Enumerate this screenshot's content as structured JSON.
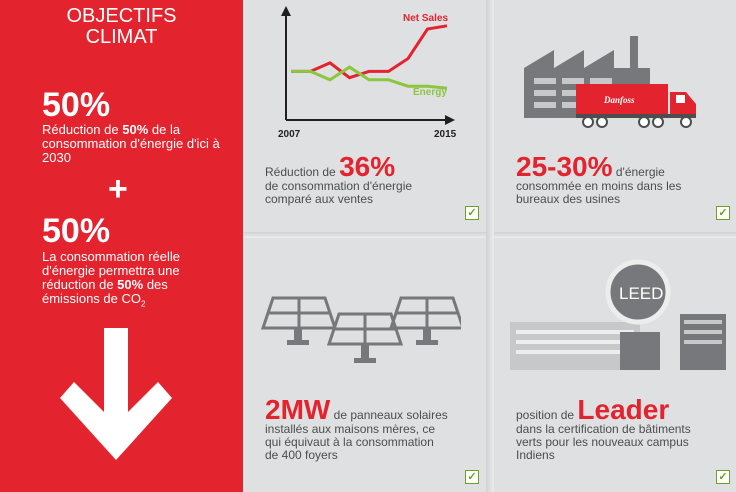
{
  "left": {
    "title_line1": "OBJECTIFS",
    "title_line2": "CLIMAT",
    "stat1": "50%",
    "stat1_desc_prefix": "Réduction de ",
    "stat1_desc_bold": "50%",
    "stat1_desc_suffix": " de la consommation d'énergie d'ici à 2030",
    "plus": "+",
    "stat2": "50%",
    "stat2_desc_prefix": "La consommation réelle d'énergie permettra une réduction de ",
    "stat2_desc_bold": "50%",
    "stat2_desc_suffix": " des émissions de  CO",
    "stat2_desc_sub": "2"
  },
  "chart_data": {
    "type": "line",
    "x_start_label": "2007",
    "x_end_label": "2015",
    "series": [
      {
        "name": "Net Sales",
        "color": "#e3232e",
        "values": [
          0.44,
          0.44,
          0.52,
          0.38,
          0.44,
          0.44,
          0.56,
          0.84,
          0.87
        ]
      },
      {
        "name": "Energy",
        "color": "#8cc63f",
        "values": [
          0.44,
          0.44,
          0.36,
          0.48,
          0.36,
          0.36,
          0.3,
          0.3,
          0.28
        ]
      }
    ]
  },
  "panels": {
    "chart_panel": {
      "prefix": "Réduction de ",
      "big": "36%",
      "line2": "de consommation d'énergie",
      "line3": "comparé aux ventes"
    },
    "factory_panel": {
      "big": "25-30%",
      "suffix": " d'énergie",
      "line2": "consommée en moins dans les",
      "line3": "bureaux des usines",
      "truck_logo": "Danfoss"
    },
    "solar_panel": {
      "big": "2MW",
      "suffix": " de panneaux solaires",
      "line2": "installés aux maisons mères, ce",
      "line3": "qui équivaut à la consommation",
      "line4": "de 400 foyers"
    },
    "leed_panel": {
      "prefix": "position de ",
      "big": "Leader",
      "line2": "dans la certification de bâtiments",
      "line3": "verts pour les nouveaux campus",
      "line4": "Indiens",
      "badge": "LEED"
    }
  },
  "check_mark": "✓",
  "colors": {
    "accent": "#e3232e",
    "green": "#8cc63f",
    "gray": "#4d4d4f"
  },
  "icons": [
    "line-chart-icon",
    "factory-icon",
    "truck-icon",
    "solar-panel-icon",
    "leed-building-icon",
    "down-arrow-icon",
    "check-icon"
  ]
}
